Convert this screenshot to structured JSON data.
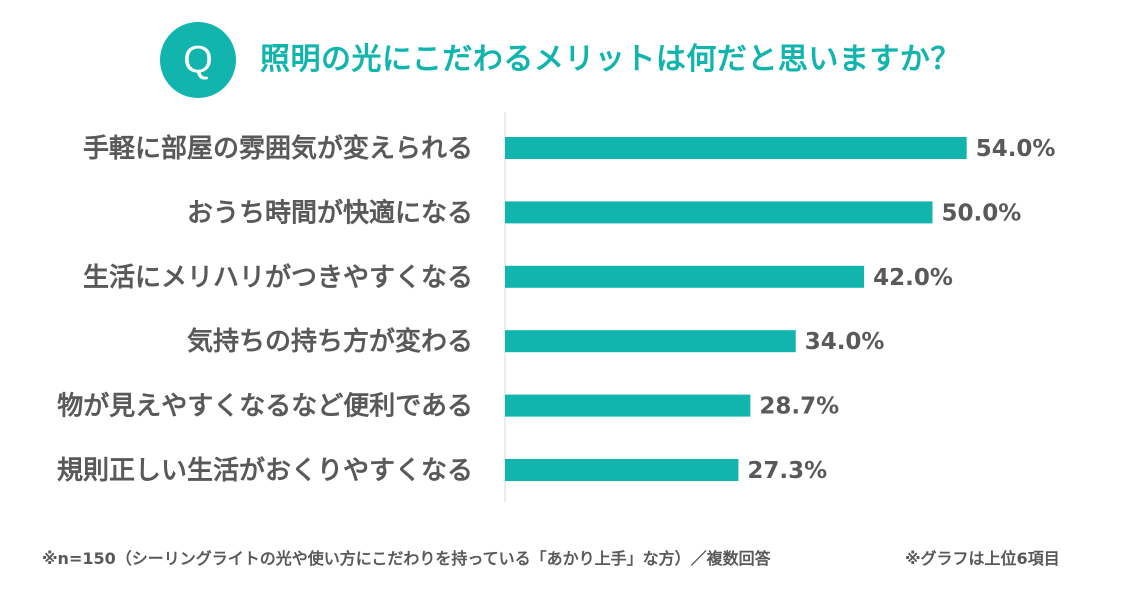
{
  "badge": "Q",
  "title": "照明の光にこだわるメリットは何だと思いますか？",
  "footnote": "※n=150（シーリングライトの光や使い方にこだわりを持っている「あかり上手」な方）／複数回答",
  "graph_note": "※グラフは上位6項目",
  "colors": {
    "accent": "#11b5ae",
    "bar": "#11b5ae",
    "text": "#595959",
    "axis": "#d9d9d9"
  },
  "chart_data": {
    "type": "bar",
    "orientation": "horizontal",
    "categories": [
      "手軽に部屋の雰囲気が変えられる",
      "おうち時間が快適になる",
      "生活にメリハリがつきやすくなる",
      "気持ちの持ち方が変わる",
      "物が見えやすくなるなど便利である",
      "規則正しい生活がおくりやすくなる"
    ],
    "values": [
      54.0,
      50.0,
      42.0,
      34.0,
      28.7,
      27.3
    ],
    "value_labels": [
      "54.0%",
      "50.0%",
      "42.0%",
      "34.0%",
      "28.7%",
      "27.3%"
    ],
    "xlim": [
      0,
      70
    ],
    "grid": false,
    "legend": "none"
  }
}
